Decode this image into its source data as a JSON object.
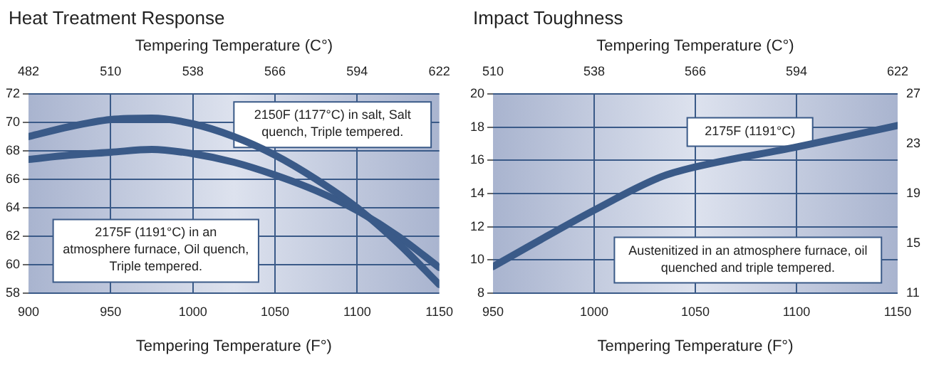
{
  "chart_data": [
    {
      "type": "line",
      "title": "Heat Treatment Response",
      "xlabel": "Tempering Temperature (F°)",
      "x2label": "Tempering Temperature (C°)",
      "x": [
        900,
        925,
        950,
        975,
        1000,
        1025,
        1050,
        1075,
        1100,
        1125,
        1150
      ],
      "series": [
        {
          "color": "#3a5a88",
          "values": [
            69.0,
            69.7,
            70.2,
            70.3,
            69.9,
            69.0,
            67.7,
            66.0,
            64.0,
            61.5,
            58.6
          ]
        },
        {
          "color": "#3a5a88",
          "values": [
            67.4,
            67.7,
            67.9,
            68.1,
            67.8,
            67.2,
            66.3,
            65.2,
            63.8,
            62.0,
            59.8
          ]
        }
      ],
      "xlim": [
        900,
        1150
      ],
      "xticks": [
        900,
        950,
        1000,
        1050,
        1100,
        1150
      ],
      "x2lim": [
        482,
        622
      ],
      "x2ticks": [
        482,
        510,
        538,
        566,
        594,
        622
      ],
      "ylim": [
        58,
        72
      ],
      "yticks": [
        58,
        60,
        62,
        64,
        66,
        68,
        70,
        72
      ],
      "grid": true,
      "legend": false,
      "marker": "none",
      "line_style": "solid",
      "annotations": [
        "2150F (1177°C) in salt, Salt quench, Triple tempered.",
        "2175F (1191°C) in an atmosphere furnace, Oil quench, Triple tempered."
      ]
    },
    {
      "type": "line",
      "title": "Impact Toughness",
      "xlabel": "Tempering Temperature (F°)",
      "x2label": "Tempering Temperature (C°)",
      "x": [
        950,
        1000,
        1033,
        1050,
        1100,
        1150
      ],
      "series": [
        {
          "color": "#3a5a88",
          "values": [
            9.6,
            13.0,
            15.0,
            15.6,
            16.8,
            18.1
          ]
        }
      ],
      "xlim": [
        950,
        1150
      ],
      "xticks": [
        950,
        1000,
        1050,
        1100,
        1150
      ],
      "x2lim": [
        510,
        622
      ],
      "x2ticks": [
        510,
        538,
        566,
        594,
        622
      ],
      "ylim": [
        8,
        20
      ],
      "yticks": [
        8,
        10,
        12,
        14,
        16,
        18,
        20
      ],
      "y2lim": [
        11,
        27
      ],
      "y2ticks": [
        11,
        15,
        19,
        23,
        27
      ],
      "grid": true,
      "legend": false,
      "marker": "none",
      "line_style": "solid",
      "annotations": [
        "2175F (1191°C)",
        "Austenitized in an atmosphere furnace, oil quenched and triple tempered."
      ]
    }
  ]
}
